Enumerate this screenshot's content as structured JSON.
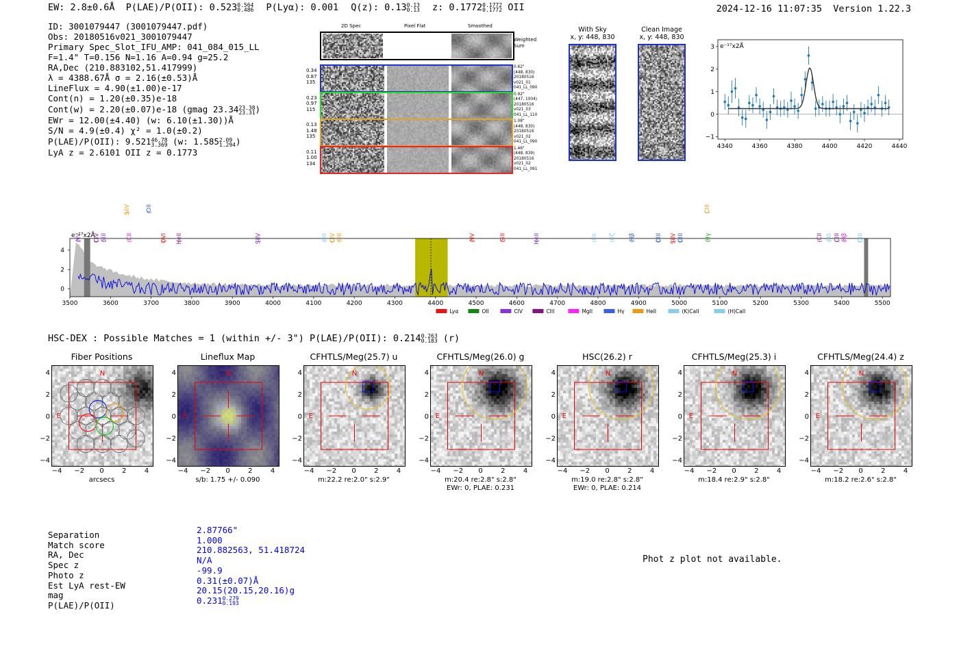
{
  "header": {
    "ew": "EW: 2.8±0.6Å",
    "plae_label": "P(LAE)/P(OII): 0.523",
    "plae_hi": "0.564",
    "plae_lo": "0.486",
    "plya": "P(Lyα): 0.001",
    "qz_label": "Q(z): 0.13",
    "qz_hi": "0.13",
    "qz_lo": "0.13",
    "z_label": "z: 0.1772",
    "z_hi": "0.1772",
    "z_lo": "0.1772",
    "z_line": "OII",
    "timestamp": "2024-12-16 11:07:35",
    "version": "Version 1.22.3"
  },
  "info": {
    "lines": [
      "ID: 3001079447 (3001079447.pdf)",
      "Obs: 20180516v021_3001079447",
      "Primary Spec_Slot_IFU_AMP: 041_084_015_LL",
      "F=1.4\"  T=0.156  N=1.16  A=0.94  g=25.2",
      "RA,Dec (210.883102,51.417999)",
      "λ = 4388.67Å  σ = 2.16(±0.53)Å",
      "LineFlux = 4.90(±1.00)e-17",
      "Cont(n) = 1.20(±0.35)e-18"
    ],
    "contw": "Cont(w) = 2.20(±0.07)e-18 (gmag 23.34",
    "contw_hi": "23.38",
    "contw_lo": "23.31",
    "ewr": "EWr = 12.00(±4.40) (w: 6.10(±1.30))Å",
    "sn": "S/N = 4.9(±0.4)  χ² = 1.0(±0.2)",
    "plae": "P(LAE)/P(OII): 9.521",
    "plae_hi": "46.78",
    "plae_lo": "3.369",
    "plae_w": "(w: 1.585",
    "plae_w_hi": "2.09",
    "plae_w_lo": "1.294",
    "lya_z": "LyA z = 2.6101   OII z = 0.1773"
  },
  "cutouts": {
    "headers": [
      "2D Spec",
      "Pixel Flat",
      "Smoothed"
    ],
    "weighted_label": "Weighted Sum",
    "rows": [
      {
        "vals": [
          "0.34",
          "0.87",
          "135"
        ],
        "meta": [
          "0.62\"",
          "(448, 830)",
          "20180516",
          "v021_01",
          "041_LL_090"
        ],
        "color": "#1f2fd6"
      },
      {
        "vals": [
          "0.23",
          "0.97",
          "115"
        ],
        "meta": [
          "0.92\"",
          "(447, 1004)",
          "20180516",
          "v021_03",
          "041_LL_110"
        ],
        "color": "#22dd22"
      },
      {
        "vals": [
          "0.13",
          "1.48",
          "135"
        ],
        "meta": [
          "1.08\"",
          "(448, 830)",
          "20180516",
          "v021_02",
          "041_LL_090"
        ],
        "color": "#e8a020"
      },
      {
        "vals": [
          "0.11",
          "1.00",
          "134"
        ],
        "meta": [
          "1.46\"",
          "(448, 839)",
          "20180516",
          "v021_02",
          "041_LL_091"
        ],
        "color": "#ee2222"
      }
    ]
  },
  "sky": {
    "with_sky_title": "With Sky",
    "with_sky_sub": "x, y: 448, 830",
    "clean_title": "Clean Image",
    "clean_sub": "x, y: 448, 830"
  },
  "zoom_chart": {
    "type": "line",
    "unit_label": "e⁻¹⁷x2Å",
    "xlim": [
      4336,
      4442
    ],
    "ylim": [
      -1.1,
      3.3
    ],
    "x_ticks": [
      4340,
      4360,
      4380,
      4400,
      4420,
      4440
    ],
    "y_ticks": [
      -1,
      0,
      1,
      2,
      3
    ],
    "fit_peak_x": 4388.67,
    "fit_peak_y": 2.05,
    "fit_sigma": 2.16,
    "fit_baseline": 0.25,
    "points": [
      [
        4340,
        0.55,
        0.35
      ],
      [
        4342,
        0.4,
        0.4
      ],
      [
        4344,
        1.0,
        0.5
      ],
      [
        4346,
        1.15,
        0.45
      ],
      [
        4348,
        0.3,
        0.4
      ],
      [
        4350,
        -0.15,
        0.35
      ],
      [
        4352,
        -0.2,
        0.4
      ],
      [
        4354,
        0.5,
        0.35
      ],
      [
        4356,
        0.4,
        0.35
      ],
      [
        4358,
        0.85,
        0.35
      ],
      [
        4360,
        0.35,
        0.35
      ],
      [
        4362,
        0.2,
        0.35
      ],
      [
        4364,
        -0.25,
        0.4
      ],
      [
        4366,
        0.1,
        0.35
      ],
      [
        4368,
        0.8,
        0.35
      ],
      [
        4370,
        0.3,
        0.35
      ],
      [
        4372,
        0.25,
        0.35
      ],
      [
        4374,
        0.3,
        0.35
      ],
      [
        4376,
        0.2,
        0.35
      ],
      [
        4378,
        0.6,
        0.4
      ],
      [
        4380,
        0.35,
        0.35
      ],
      [
        4382,
        0.15,
        0.35
      ],
      [
        4384,
        0.85,
        0.35
      ],
      [
        4386,
        1.55,
        0.35
      ],
      [
        4388,
        2.6,
        0.4
      ],
      [
        4390,
        1.4,
        0.35
      ],
      [
        4392,
        0.25,
        0.35
      ],
      [
        4394,
        0.3,
        0.35
      ],
      [
        4396,
        0.45,
        0.35
      ],
      [
        4398,
        0.25,
        0.35
      ],
      [
        4400,
        0.25,
        0.35
      ],
      [
        4402,
        0.55,
        0.35
      ],
      [
        4404,
        0.3,
        0.35
      ],
      [
        4406,
        0.0,
        0.4
      ],
      [
        4408,
        0.35,
        0.35
      ],
      [
        4410,
        0.5,
        0.35
      ],
      [
        4412,
        -0.3,
        0.4
      ],
      [
        4414,
        0.1,
        0.35
      ],
      [
        4416,
        -0.4,
        0.4
      ],
      [
        4418,
        0.2,
        0.35
      ],
      [
        4420,
        0.05,
        0.4
      ],
      [
        4422,
        0.3,
        0.35
      ],
      [
        4424,
        0.45,
        0.35
      ],
      [
        4426,
        0.3,
        0.35
      ],
      [
        4428,
        0.85,
        0.4
      ],
      [
        4430,
        0.25,
        0.35
      ],
      [
        4432,
        0.5,
        0.35
      ],
      [
        4434,
        0.3,
        0.35
      ]
    ]
  },
  "chart_data": {
    "type": "line",
    "title": "",
    "ylabel": "e⁻¹⁷x2Å",
    "xlim": [
      3500,
      5520
    ],
    "ylim": [
      -0.8,
      5.2
    ],
    "x_ticks": [
      3500,
      3600,
      3700,
      3800,
      3900,
      4000,
      4100,
      4200,
      4300,
      4400,
      4500,
      4600,
      4700,
      4800,
      4900,
      5000,
      5100,
      5200,
      5300,
      5400,
      5500
    ],
    "y_ticks": [
      0,
      2,
      4
    ],
    "highlight_x": [
      4350,
      4430
    ],
    "emission_x": 4388.67,
    "masked_bands": [
      [
        3535,
        3550
      ],
      [
        5455,
        5465
      ]
    ],
    "lines": [
      {
        "label": "NV",
        "x": 3520,
        "color": "#8833cc",
        "row": 1
      },
      {
        "label": "CIV",
        "x": 3565,
        "color": "#8a2a8a",
        "row": 1
      },
      {
        "label": "SiII",
        "x": 3583,
        "color": "#8833cc",
        "row": 1
      },
      {
        "label": "CII",
        "x": 3646,
        "color": "#dd22dd",
        "row": 1
      },
      {
        "label": "SiIV",
        "x": 3640,
        "color": "#e8a020",
        "row": 2
      },
      {
        "label": "OII",
        "x": 3694,
        "color": "#3a5fcd",
        "row": 2
      },
      {
        "label": "OVI",
        "x": 3730,
        "color": "#ee2222",
        "row": 1
      },
      {
        "label": "HeII",
        "x": 3768,
        "color": "#8a2a8a",
        "row": 1
      },
      {
        "label": "SiIV",
        "x": 3963,
        "color": "#8833cc",
        "row": 1
      },
      {
        "label": "OII",
        "x": 4126,
        "color": "#88ccee",
        "row": 1
      },
      {
        "label": "CIV",
        "x": 4146,
        "color": "#e8a020",
        "row": 1
      },
      {
        "label": "OII",
        "x": 4163,
        "color": "#e8a020",
        "row": 1
      },
      {
        "label": "NV",
        "x": 4490,
        "color": "#ee2222",
        "row": 1
      },
      {
        "label": "SiII",
        "x": 4565,
        "color": "#ee2222",
        "row": 1
      },
      {
        "label": "HeII",
        "x": 4648,
        "color": "#8833cc",
        "row": 1
      },
      {
        "label": "Hε",
        "x": 4790,
        "color": "#88ccee",
        "row": 1
      },
      {
        "label": "Hζ",
        "x": 4835,
        "color": "#88ccee",
        "row": 1
      },
      {
        "label": "Hβ",
        "x": 4883,
        "color": "#3a5fcd",
        "row": 1
      },
      {
        "label": "OIII",
        "x": 4948,
        "color": "#3a5fcd",
        "row": 1
      },
      {
        "label": "SiIV",
        "x": 4985,
        "color": "#ee2222",
        "row": 1
      },
      {
        "label": "OIII",
        "x": 5002,
        "color": "#3a5fcd",
        "row": 1
      },
      {
        "label": "CIII",
        "x": 5068,
        "color": "#e8a020",
        "row": 2
      },
      {
        "label": "Hγ",
        "x": 5070,
        "color": "#22aa22",
        "row": 1
      },
      {
        "label": "CII",
        "x": 5345,
        "color": "#8a2a8a",
        "row": 1
      },
      {
        "label": "Hδ",
        "x": 5368,
        "color": "#88ccee",
        "row": 1
      },
      {
        "label": "CIII",
        "x": 5388,
        "color": "#8a2a8a",
        "row": 1
      },
      {
        "label": "Hβ",
        "x": 5405,
        "color": "#dd22dd",
        "row": 1
      },
      {
        "label": "OIII",
        "x": 5445,
        "color": "#88ccee",
        "row": 1
      }
    ],
    "legend": [
      {
        "label": "Lyα",
        "color": "#ee1111"
      },
      {
        "label": "OII",
        "color": "#118811"
      },
      {
        "label": "CIV",
        "color": "#8833dd"
      },
      {
        "label": "CIII",
        "color": "#881188"
      },
      {
        "label": "MgII",
        "color": "#ff22ff"
      },
      {
        "label": "Hγ",
        "color": "#3a5fee"
      },
      {
        "label": "HeII",
        "color": "#ee9911"
      },
      {
        "label": "(K)CaII",
        "color": "#88ccee"
      },
      {
        "label": "(H)CaII",
        "color": "#88ccee"
      }
    ]
  },
  "hsc": {
    "title": "HSC-DEX : Possible Matches = 1 (within +/- 3\")  P(LAE)/P(OII): 0.214",
    "plae_hi": "0.263",
    "plae_lo": "0.183",
    "band": "(r)"
  },
  "panels": [
    {
      "title": "Fiber Positions",
      "xlabel": "arcsecs",
      "xlabel2": ""
    },
    {
      "title": "Lineflux Map",
      "xlabel": "s/b: 1.75 +/- 0.090",
      "xlabel2": ""
    },
    {
      "title": "CFHTLS/Meg(25.7) u",
      "xlabel": "m:22.2  re:2.0\"  s:2.9\"",
      "xlabel2": ""
    },
    {
      "title": "CFHTLS/Meg(26.0) g",
      "xlabel": "m:20.4  re:2.8\"  s:2.8\"",
      "xlabel2": "EWr: 0, PLAE: 0.231"
    },
    {
      "title": "HSC(26.2) r",
      "xlabel": "m:19.0  re:2.8\"  s:2.8\"",
      "xlabel2": "EWr: 0, PLAE: 0.214"
    },
    {
      "title": "CFHTLS/Meg(25.3) i",
      "xlabel": "m:18.4  re:2.9\"  s:2.8\"",
      "xlabel2": ""
    },
    {
      "title": "CFHTLS/Meg(24.4) z",
      "xlabel": "m:18.2  re:2.6\"  s:2.8\"",
      "xlabel2": ""
    }
  ],
  "panel_ticks": {
    "x": [
      "−4",
      "−2",
      "0",
      "2",
      "4"
    ],
    "y": [
      "4",
      "2",
      "0",
      "−2",
      "−4"
    ]
  },
  "panel_markers": {
    "north": "N",
    "east": "E"
  },
  "match": {
    "labels": [
      "Separation",
      "Match score",
      "RA, Dec",
      "Spec z",
      "Photo z",
      "Est LyA rest-EW",
      "mag",
      "P(LAE)/P(OII)"
    ],
    "values": [
      "2.87766\"",
      "1.000",
      "210.882563, 51.418724",
      "N/A",
      "-99.9",
      "0.31(±0.07)Å",
      "20.15(20.15,20.16)g",
      "0.231"
    ],
    "plae_hi": "0.279",
    "plae_lo": "0.193"
  },
  "photz_note": "Phot z plot not available."
}
